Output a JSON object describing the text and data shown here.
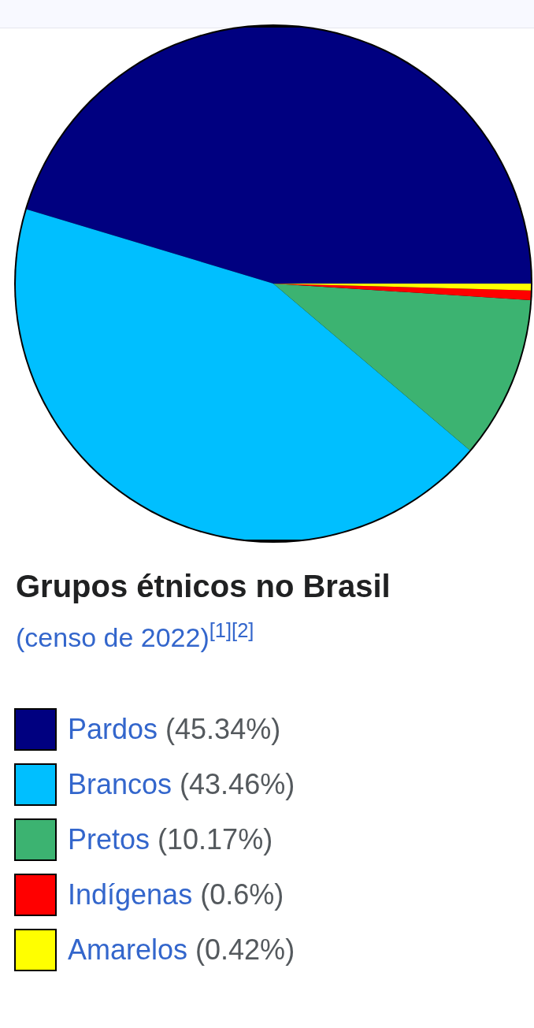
{
  "chart_data": {
    "type": "pie",
    "title": "Grupos étnicos no Brasil",
    "subtitle": "(censo de 2022)$^{[1][2]}$",
    "categories": [
      "Pardos",
      "Brancos",
      "Pretos",
      "Indígenas",
      "Amarelos"
    ],
    "values": [
      45.34,
      43.46,
      10.17,
      0.6,
      0.42
    ],
    "value_labels": [
      "(45.34%)",
      "(43.46%)",
      "(10.17%)",
      "(0.6%)",
      "(0.42%)"
    ],
    "colors": [
      "#000080",
      "#00bfff",
      "#3cb371",
      "#ff0000",
      "#ffff00"
    ],
    "legend": "bottom"
  }
}
